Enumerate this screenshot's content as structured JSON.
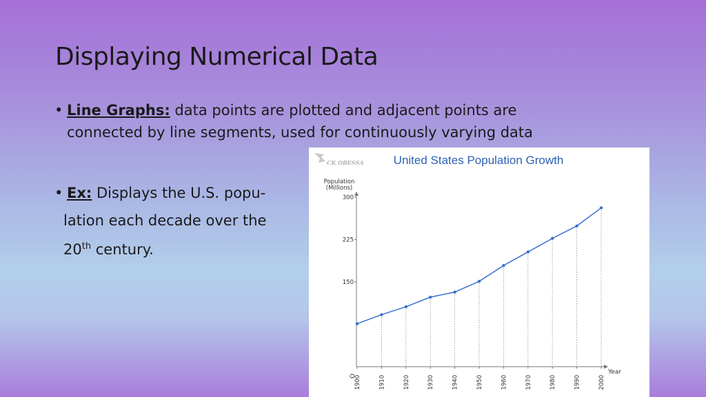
{
  "slide": {
    "title": "Displaying Numerical Data",
    "bullet1": {
      "term": "Line Graphs:",
      "text_line1": " data points are plotted and adjacent points are",
      "text_line2": "connected by line segments, used for continuously varying data"
    },
    "bullet2": {
      "term": "Ex:",
      "text_line1": " Displays the U.S. popu-",
      "text_line2": "lation each decade over the",
      "text_line3_main": "20",
      "text_line3_sup": "th",
      "text_line3_rest": " century."
    }
  },
  "chart_data": {
    "type": "line",
    "title": "United States Population Growth",
    "watermark": "CK OBESSA",
    "ylabel_line1": "Population",
    "ylabel_line2": "(Millions)",
    "xlabel": "Year",
    "origin_label": "O",
    "x": [
      "1900",
      "1910",
      "1920",
      "1930",
      "1940",
      "1950",
      "1960",
      "1970",
      "1980",
      "1990",
      "2000"
    ],
    "values": [
      76,
      92,
      106,
      123,
      132,
      151,
      179,
      203,
      227,
      249,
      281
    ],
    "yticks": [
      150,
      225,
      300
    ],
    "ylim": [
      0,
      300
    ],
    "grid": "vertical dotted drop lines",
    "line_color": "#3a6fd0",
    "title_color": "#2e5fb3"
  }
}
